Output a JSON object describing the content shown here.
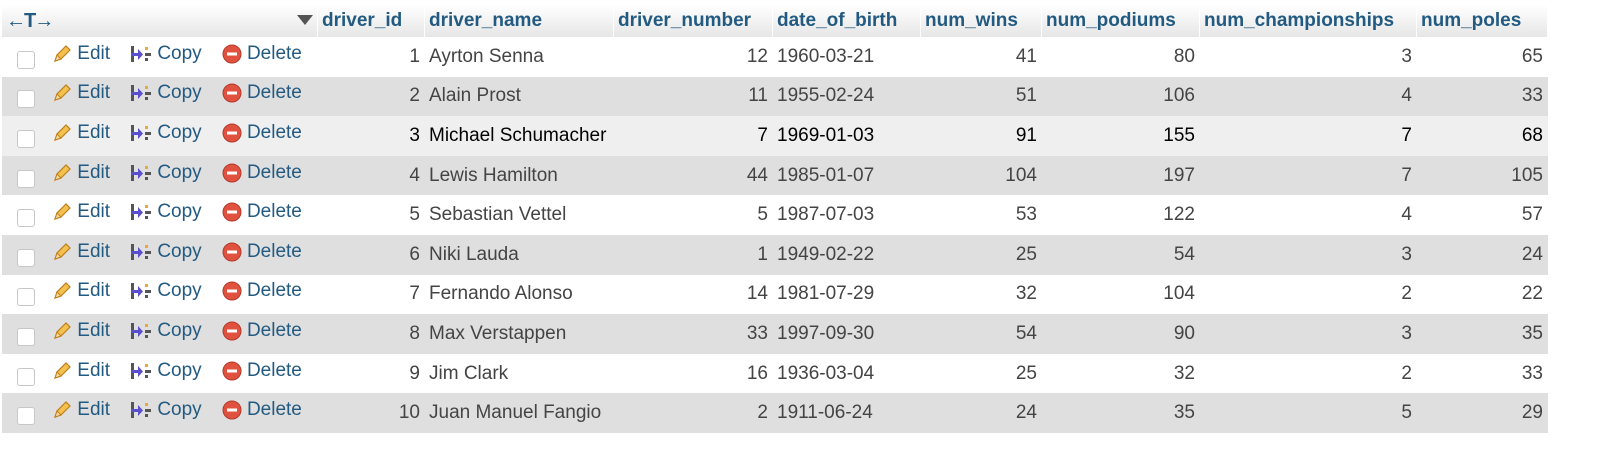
{
  "toolbar": {
    "column_arrows": "←T→"
  },
  "actions": {
    "edit": "Edit",
    "copy": "Copy",
    "delete": "Delete"
  },
  "columns": [
    "driver_id",
    "driver_name",
    "driver_number",
    "date_of_birth",
    "num_wins",
    "num_podiums",
    "num_championships",
    "num_poles"
  ],
  "rows": [
    [
      "1",
      "Ayrton Senna",
      "12",
      "1960-03-21",
      "41",
      "80",
      "3",
      "65"
    ],
    [
      "2",
      "Alain Prost",
      "11",
      "1955-02-24",
      "51",
      "106",
      "4",
      "33"
    ],
    [
      "3",
      "Michael Schumacher",
      "7",
      "1969-01-03",
      "91",
      "155",
      "7",
      "68"
    ],
    [
      "4",
      "Lewis Hamilton",
      "44",
      "1985-01-07",
      "104",
      "197",
      "7",
      "105"
    ],
    [
      "5",
      "Sebastian Vettel",
      "5",
      "1987-07-03",
      "53",
      "122",
      "4",
      "57"
    ],
    [
      "6",
      "Niki Lauda",
      "1",
      "1949-02-22",
      "25",
      "54",
      "3",
      "24"
    ],
    [
      "7",
      "Fernando Alonso",
      "14",
      "1981-07-29",
      "32",
      "104",
      "2",
      "22"
    ],
    [
      "8",
      "Max Verstappen",
      "33",
      "1997-09-30",
      "54",
      "90",
      "3",
      "35"
    ],
    [
      "9",
      "Jim Clark",
      "16",
      "1936-03-04",
      "25",
      "32",
      "2",
      "33"
    ],
    [
      "10",
      "Juan Manuel Fangio",
      "2",
      "1911-06-24",
      "24",
      "35",
      "5",
      "29"
    ]
  ],
  "colors": {
    "link": "#235a81",
    "row_alt": "#dfdfdf",
    "row_highlight": "#efefef",
    "delete_icon": "#e0523f",
    "copy_icon": "#5a4fcf",
    "edit_icon": "#e8a93a"
  }
}
